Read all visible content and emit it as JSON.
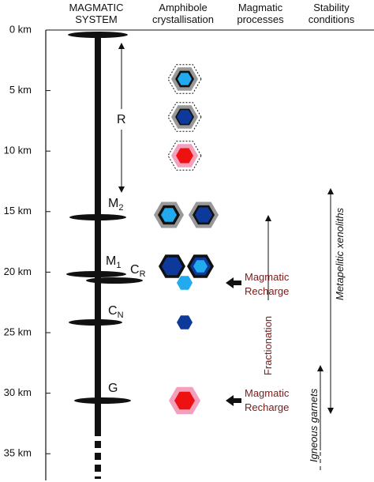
{
  "header": {
    "columns": [
      [
        "MAGMATIC",
        "SYSTEM"
      ],
      [
        "Amphibole",
        "crystallisation"
      ],
      [
        "Magmatic",
        "processes"
      ],
      [
        "Stability",
        "conditions"
      ]
    ]
  },
  "depth_axis": [
    "0 km",
    "5 km",
    "10 km",
    "15 km",
    "20 km",
    "25 km",
    "30 km",
    "35 km"
  ],
  "reservoirs": {
    "R": "R",
    "M2": {
      "main": "M",
      "sub": "2"
    },
    "M1": {
      "main": "M",
      "sub": "1"
    },
    "CR": {
      "main": "C",
      "sub": "R"
    },
    "CN": {
      "main": "C",
      "sub": "N"
    },
    "G": "G"
  },
  "processes": {
    "recharge_upper": [
      "Magmatic",
      "Recharge"
    ],
    "recharge_lower": [
      "Magmatic",
      "Recharge"
    ],
    "fractionation": "Fractionation"
  },
  "stability": {
    "xenoliths": "Metapelitic xenoliths",
    "garnets": "Igneous garnets"
  }
}
